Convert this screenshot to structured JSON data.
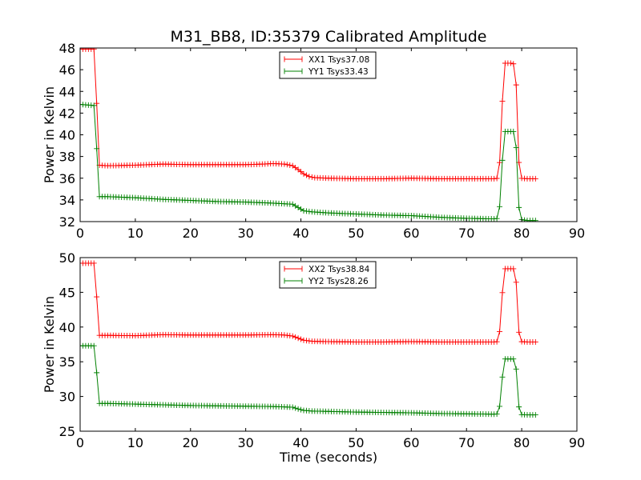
{
  "figure": {
    "title": "M31_BB8, ID:35379 Calibrated Amplitude"
  },
  "chart_data": [
    {
      "type": "line",
      "title": "M31_BB8, ID:35379 Calibrated Amplitude",
      "xlabel": "",
      "ylabel": "Power in Kelvin",
      "xlim": [
        0,
        90
      ],
      "ylim": [
        32,
        48
      ],
      "xticks": [
        0,
        10,
        20,
        30,
        40,
        50,
        60,
        70,
        80,
        90
      ],
      "yticks": [
        32,
        34,
        36,
        38,
        40,
        42,
        44,
        46,
        48
      ],
      "grid": false,
      "legend_position": "top-center",
      "marker": "plus",
      "series": [
        {
          "name": "XX1 Tsys37.08",
          "color": "#ff0000",
          "points": [
            [
              0,
              47.9
            ],
            [
              2.5,
              47.9
            ],
            [
              2.9,
              44.8
            ],
            [
              3.3,
              37.2
            ],
            [
              5,
              37.15
            ],
            [
              10,
              37.2
            ],
            [
              15,
              37.3
            ],
            [
              20,
              37.25
            ],
            [
              25,
              37.25
            ],
            [
              30,
              37.25
            ],
            [
              33,
              37.3
            ],
            [
              35,
              37.35
            ],
            [
              37,
              37.3
            ],
            [
              38.5,
              37.15
            ],
            [
              39.5,
              36.8
            ],
            [
              40.5,
              36.4
            ],
            [
              41.5,
              36.15
            ],
            [
              42.5,
              36.05
            ],
            [
              45,
              36.0
            ],
            [
              50,
              35.95
            ],
            [
              55,
              35.95
            ],
            [
              60,
              36.0
            ],
            [
              65,
              35.95
            ],
            [
              70,
              35.95
            ],
            [
              75,
              35.95
            ],
            [
              75.8,
              36.0
            ],
            [
              76.3,
              39.6
            ],
            [
              76.7,
              46.6
            ],
            [
              78,
              46.6
            ],
            [
              78.9,
              46.5
            ],
            [
              79.3,
              38.9
            ],
            [
              79.7,
              36.0
            ],
            [
              81,
              35.95
            ],
            [
              82.5,
              35.95
            ]
          ]
        },
        {
          "name": "YY1 Tsys33.43",
          "color": "#008000",
          "points": [
            [
              0,
              42.8
            ],
            [
              2.5,
              42.7
            ],
            [
              2.9,
              40.2
            ],
            [
              3.3,
              34.3
            ],
            [
              5,
              34.3
            ],
            [
              10,
              34.2
            ],
            [
              15,
              34.05
            ],
            [
              20,
              33.95
            ],
            [
              25,
              33.85
            ],
            [
              30,
              33.8
            ],
            [
              35,
              33.7
            ],
            [
              38.5,
              33.6
            ],
            [
              39.5,
              33.3
            ],
            [
              40.5,
              33.0
            ],
            [
              42,
              32.9
            ],
            [
              45,
              32.8
            ],
            [
              50,
              32.7
            ],
            [
              55,
              32.6
            ],
            [
              60,
              32.55
            ],
            [
              65,
              32.4
            ],
            [
              70,
              32.3
            ],
            [
              75,
              32.25
            ],
            [
              75.8,
              32.3
            ],
            [
              76.3,
              35.0
            ],
            [
              76.7,
              40.3
            ],
            [
              78,
              40.3
            ],
            [
              78.9,
              40.3
            ],
            [
              79.3,
              34.4
            ],
            [
              79.7,
              32.2
            ],
            [
              81,
              32.1
            ],
            [
              82.5,
              32.1
            ]
          ]
        }
      ]
    },
    {
      "type": "line",
      "title": "",
      "xlabel": "Time (seconds)",
      "ylabel": "Power in Kelvin",
      "xlim": [
        0,
        90
      ],
      "ylim": [
        25,
        50
      ],
      "xticks": [
        0,
        10,
        20,
        30,
        40,
        50,
        60,
        70,
        80,
        90
      ],
      "yticks": [
        25,
        30,
        35,
        40,
        45,
        50
      ],
      "grid": false,
      "legend_position": "top-center",
      "marker": "plus",
      "series": [
        {
          "name": "XX2 Tsys38.84",
          "color": "#ff0000",
          "points": [
            [
              0,
              49.2
            ],
            [
              2.5,
              49.2
            ],
            [
              2.9,
              46.2
            ],
            [
              3.3,
              38.8
            ],
            [
              5,
              38.8
            ],
            [
              10,
              38.75
            ],
            [
              15,
              38.9
            ],
            [
              20,
              38.85
            ],
            [
              25,
              38.85
            ],
            [
              30,
              38.85
            ],
            [
              35,
              38.9
            ],
            [
              37,
              38.85
            ],
            [
              38.5,
              38.7
            ],
            [
              39.5,
              38.4
            ],
            [
              40.5,
              38.1
            ],
            [
              42,
              37.95
            ],
            [
              45,
              37.9
            ],
            [
              50,
              37.85
            ],
            [
              55,
              37.85
            ],
            [
              60,
              37.9
            ],
            [
              65,
              37.85
            ],
            [
              70,
              37.85
            ],
            [
              75,
              37.85
            ],
            [
              75.8,
              37.9
            ],
            [
              76.3,
              41.5
            ],
            [
              76.7,
              48.4
            ],
            [
              78,
              48.4
            ],
            [
              78.9,
              48.4
            ],
            [
              79.3,
              40.6
            ],
            [
              79.7,
              37.9
            ],
            [
              81,
              37.85
            ],
            [
              82.5,
              37.85
            ]
          ]
        },
        {
          "name": "YY2 Tsys28.26",
          "color": "#008000",
          "points": [
            [
              0,
              37.3
            ],
            [
              2.5,
              37.3
            ],
            [
              2.9,
              34.9
            ],
            [
              3.3,
              29.0
            ],
            [
              5,
              29.0
            ],
            [
              10,
              28.9
            ],
            [
              15,
              28.8
            ],
            [
              20,
              28.7
            ],
            [
              25,
              28.65
            ],
            [
              30,
              28.6
            ],
            [
              35,
              28.55
            ],
            [
              38.5,
              28.45
            ],
            [
              39.5,
              28.2
            ],
            [
              40.5,
              28.0
            ],
            [
              42,
              27.9
            ],
            [
              45,
              27.85
            ],
            [
              50,
              27.75
            ],
            [
              55,
              27.7
            ],
            [
              60,
              27.65
            ],
            [
              65,
              27.55
            ],
            [
              70,
              27.5
            ],
            [
              75,
              27.45
            ],
            [
              75.8,
              27.5
            ],
            [
              76.3,
              30.2
            ],
            [
              76.7,
              35.4
            ],
            [
              78,
              35.4
            ],
            [
              78.9,
              35.4
            ],
            [
              79.3,
              29.6
            ],
            [
              79.7,
              27.4
            ],
            [
              81,
              27.35
            ],
            [
              82.5,
              27.35
            ]
          ]
        }
      ]
    }
  ]
}
